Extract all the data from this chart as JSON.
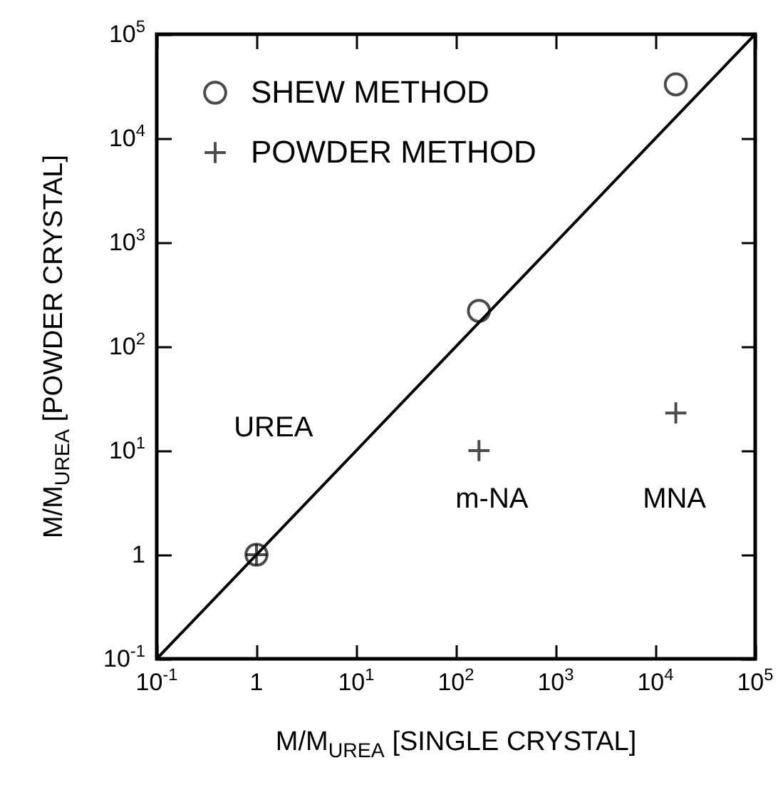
{
  "chart_data": {
    "type": "scatter",
    "xlabel": "M/M$_{UREA}$  [SINGLE CRYSTAL]",
    "ylabel": "M/M$_{UREA}$  [POWDER CRYSTAL]",
    "log": "xy",
    "xlim": [
      0.1,
      100000
    ],
    "ylim": [
      0.1,
      100000
    ],
    "xticks": [
      {
        "value": 0.1,
        "label": "10$^{-1}$"
      },
      {
        "value": 1,
        "label": "1"
      },
      {
        "value": 10,
        "label": "10$^{1}$"
      },
      {
        "value": 100,
        "label": "10$^{2}$"
      },
      {
        "value": 1000,
        "label": "10$^{3}$"
      },
      {
        "value": 10000,
        "label": "10$^{4}$"
      },
      {
        "value": 100000,
        "label": "10$^{5}$"
      }
    ],
    "yticks": [
      {
        "value": 0.1,
        "label": "10$^{-1}$"
      },
      {
        "value": 1,
        "label": "1"
      },
      {
        "value": 10,
        "label": "10$^{1}$"
      },
      {
        "value": 100,
        "label": "10$^{2}$"
      },
      {
        "value": 1000,
        "label": "10$^{3}$"
      },
      {
        "value": 10000,
        "label": "10$^{4}$"
      },
      {
        "value": 100000,
        "label": "10$^{5}$"
      }
    ],
    "grid": false,
    "legend": "top left",
    "series": [
      {
        "name": "SHEW METHOD",
        "color": "#000000",
        "marker": "circle",
        "x": [
          1,
          170,
          16000
        ],
        "values": [
          1,
          220,
          33000
        ]
      },
      {
        "name": "POWDER METHOD",
        "color": "#000000",
        "marker": "cross",
        "x": [
          1,
          170,
          16000
        ],
        "values": [
          1,
          10,
          23
        ]
      },
      {
        "type": "line",
        "color": "#000000",
        "marker": "none",
        "x": [
          0.1,
          100000
        ],
        "values": [
          0.1,
          100000
        ]
      }
    ],
    "annotations": [
      "UREA",
      "m-NA",
      "MNA"
    ]
  }
}
